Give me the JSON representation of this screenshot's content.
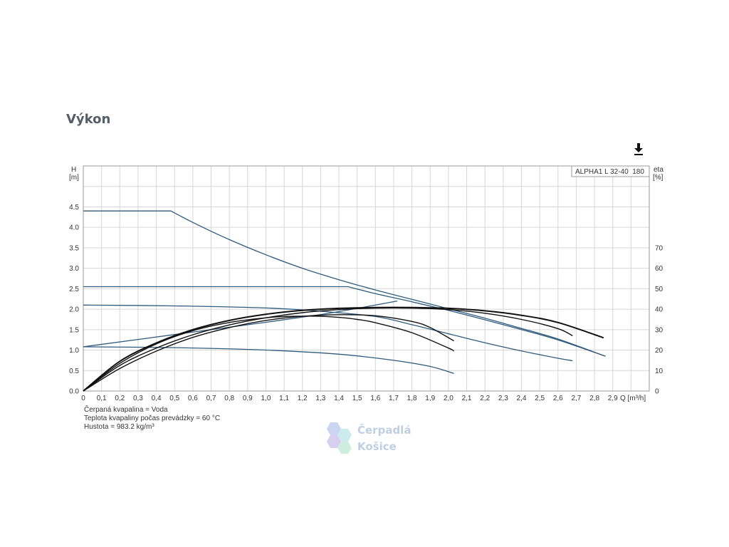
{
  "page": {
    "title": "Výkon"
  },
  "download": {
    "icon": "download-icon"
  },
  "chart_data": {
    "type": "line",
    "legend_box": "ALPHA1 L 32-40  180",
    "legend_position": "top-right",
    "grid": true,
    "x_axis": {
      "unit_label": "Q [m³/h]",
      "range": [
        0,
        3.1
      ],
      "ticks": [
        "0",
        "0,1",
        "0,2",
        "0,3",
        "0,4",
        "0,5",
        "0,6",
        "0,7",
        "0,8",
        "0,9",
        "1,0",
        "1,1",
        "1,2",
        "1,3",
        "1,4",
        "1,5",
        "1,6",
        "1,7",
        "1,8",
        "1,9",
        "2,0",
        "2,1",
        "2,2",
        "2,3",
        "2,4",
        "2,5",
        "2,6",
        "2,7",
        "2,8",
        "2,9"
      ],
      "tick_values": [
        0,
        0.1,
        0.2,
        0.3,
        0.4,
        0.5,
        0.6,
        0.7,
        0.8,
        0.9,
        1.0,
        1.1,
        1.2,
        1.3,
        1.4,
        1.5,
        1.6,
        1.7,
        1.8,
        1.9,
        2.0,
        2.1,
        2.2,
        2.3,
        2.4,
        2.5,
        2.6,
        2.7,
        2.8,
        2.9
      ]
    },
    "y_axis_left": {
      "label_top": "H",
      "label_unit": "[m]",
      "range": [
        0,
        5.5
      ],
      "ticks": [
        "0.0",
        "0.5",
        "1.0",
        "1.5",
        "2.0",
        "2.5",
        "3.0",
        "3.5",
        "4.0",
        "4.5"
      ],
      "tick_values": [
        0,
        0.5,
        1.0,
        1.5,
        2.0,
        2.5,
        3.0,
        3.5,
        4.0,
        4.5
      ]
    },
    "y_axis_right": {
      "label_top": "eta",
      "label_unit": "[%]",
      "range": [
        0,
        110
      ],
      "ticks": [
        "0",
        "10",
        "20",
        "30",
        "40",
        "50",
        "60",
        "70"
      ],
      "tick_values": [
        0,
        10,
        20,
        30,
        40,
        50,
        60,
        70
      ]
    },
    "head_series": [
      {
        "x": [
          0,
          0.48,
          0.6,
          0.8,
          1.0,
          1.2,
          1.4,
          1.6,
          1.8,
          2.0,
          2.2,
          2.4,
          2.6,
          2.86
        ],
        "y": [
          4.4,
          4.4,
          4.12,
          3.7,
          3.33,
          3.0,
          2.72,
          2.47,
          2.24,
          2.01,
          1.78,
          1.53,
          1.27,
          0.85
        ]
      },
      {
        "x": [
          0,
          1.45,
          1.6,
          1.8,
          2.0,
          2.2,
          2.4,
          2.6,
          2.86
        ],
        "y": [
          2.55,
          2.55,
          2.38,
          2.18,
          1.97,
          1.74,
          1.5,
          1.25,
          0.85
        ]
      },
      {
        "x": [
          0,
          0.5,
          1.0,
          1.3,
          1.6,
          1.8,
          2.0,
          2.2,
          2.4,
          2.6,
          2.68
        ],
        "y": [
          2.1,
          2.08,
          2.03,
          1.95,
          1.82,
          1.62,
          1.4,
          1.18,
          0.98,
          0.8,
          0.74
        ]
      },
      {
        "x": [
          0,
          0.5,
          1.0,
          1.4,
          1.7,
          1.9,
          2.03
        ],
        "y": [
          1.08,
          1.06,
          1.0,
          0.9,
          0.75,
          0.6,
          0.43
        ]
      },
      {
        "x": [
          0,
          0.5,
          1.0,
          1.3,
          1.5,
          1.72
        ],
        "y": [
          1.08,
          1.38,
          1.68,
          1.87,
          2.02,
          2.2
        ]
      }
    ],
    "efficiency_series": [
      {
        "x": [
          0,
          0.2,
          0.4,
          0.6,
          0.8,
          1.0,
          1.2,
          1.4,
          1.6,
          1.8,
          2.0,
          2.2,
          2.4,
          2.6,
          2.85
        ],
        "y": [
          0,
          14.5,
          23.5,
          30,
          34.5,
          37.5,
          39.4,
          40.4,
          40.8,
          40.8,
          40.4,
          39.2,
          37,
          33.5,
          26
        ]
      },
      {
        "x": [
          0,
          0.2,
          0.4,
          0.6,
          0.8,
          1.0,
          1.2,
          1.4,
          1.6,
          1.8,
          2.0,
          2.2,
          2.4,
          2.6,
          2.68
        ],
        "y": [
          0,
          12.5,
          21,
          27.5,
          32.3,
          35.8,
          38.3,
          39.8,
          40.5,
          40.5,
          39.8,
          38,
          35,
          30.5,
          27
        ]
      },
      {
        "x": [
          0,
          0.2,
          0.4,
          0.6,
          0.8,
          1.0,
          1.1,
          1.2,
          1.3,
          1.4,
          1.5,
          1.6,
          1.8,
          2.0,
          2.03
        ],
        "y": [
          0,
          13.5,
          23,
          29.5,
          33.5,
          35.8,
          36.4,
          36.6,
          36.5,
          36,
          35,
          33.4,
          28.5,
          21,
          19.5
        ]
      },
      {
        "x": [
          0,
          0.2,
          0.4,
          0.6,
          0.8,
          1.0,
          1.2,
          1.4,
          1.6,
          1.8,
          1.9,
          2.03
        ],
        "y": [
          0,
          11,
          19.5,
          26.2,
          31,
          34.5,
          36.5,
          37.3,
          36.8,
          34,
          31,
          24.5
        ]
      }
    ],
    "notes": [
      "Čerpaná kvapalina = Voda",
      "Teplota kvapaliny počas prevádzky = 60 °C",
      "Hustota = 983.2 kg/m³"
    ]
  },
  "watermark": {
    "line1": "Čerpadlá",
    "line2": "Košice"
  },
  "colors": {
    "head_line": "#2f5b7d",
    "efficiency_line": "#111111",
    "grid": "#d6d6d6",
    "frame": "#999999",
    "title": "#555d66"
  }
}
